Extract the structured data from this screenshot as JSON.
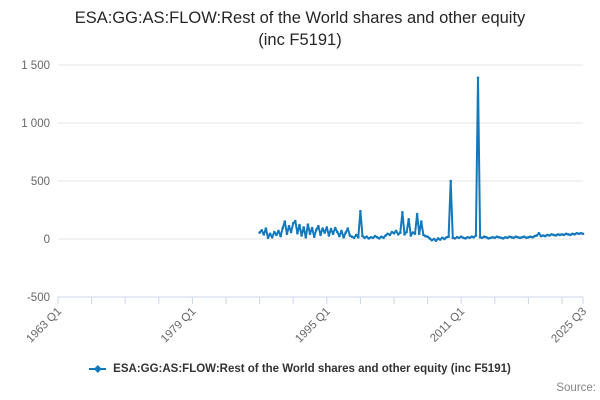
{
  "colors": {
    "series_blue": "#1379bd",
    "gridline": "#e6e6e6",
    "axis_line": "#ccd6eb",
    "tick_text": "#666666",
    "title_text": "#262626",
    "legend_text": "#333333",
    "source_text": "#858585",
    "background": "#ffffff"
  },
  "footer": {
    "source_label": "Source:"
  },
  "chart_data": {
    "type": "line",
    "title": "ESA:GG:AS:FLOW:Rest of the World shares and other equity (inc F5191)",
    "title_lines": [
      "ESA:GG:AS:FLOW:Rest of the World shares and other equity",
      "(inc F5191)"
    ],
    "legend_position": "bottom",
    "grid": "horizontal-only",
    "y_axis": {
      "min": -500,
      "max": 1500,
      "ticks": [
        -500,
        0,
        500,
        1000,
        1500
      ],
      "tick_labels": [
        "-500",
        "0",
        "500",
        "1 000",
        "1 500"
      ]
    },
    "x_axis": {
      "start_label": "1963 Q1",
      "end_label": "2025 Q3",
      "total_quarters": 250,
      "minor_tick_every_quarters": 16,
      "labeled_ticks": [
        {
          "quarter_offset": 0,
          "label": "1963 Q1"
        },
        {
          "quarter_offset": 64,
          "label": "1979 Q1"
        },
        {
          "quarter_offset": 128,
          "label": "1995 Q1"
        },
        {
          "quarter_offset": 192,
          "label": "2011 Q1"
        },
        {
          "quarter_offset": 250,
          "label": "2025 Q3"
        }
      ]
    },
    "series": [
      {
        "name": "ESA:GG:AS:FLOW:Rest of the World shares and other equity (inc F5191)",
        "color": "#1379bd",
        "start": "1987 Q1",
        "end": "2025 Q3",
        "frequency": "quarterly",
        "values": [
          55,
          75,
          40,
          90,
          10,
          45,
          15,
          60,
          35,
          70,
          25,
          95,
          150,
          45,
          110,
          60,
          135,
          155,
          50,
          120,
          30,
          100,
          15,
          125,
          45,
          95,
          20,
          80,
          110,
          35,
          90,
          55,
          100,
          30,
          85,
          45,
          95,
          60,
          25,
          70,
          15,
          55,
          90,
          30,
          20,
          10,
          35,
          15,
          240,
          25,
          10,
          20,
          5,
          15,
          10,
          25,
          15,
          5,
          20,
          10,
          30,
          45,
          35,
          60,
          50,
          70,
          40,
          55,
          230,
          40,
          60,
          170,
          30,
          55,
          45,
          215,
          45,
          150,
          35,
          25,
          20,
          5,
          -10,
          0,
          -15,
          5,
          -5,
          10,
          0,
          15,
          20,
          500,
          10,
          5,
          15,
          10,
          20,
          10,
          5,
          15,
          10,
          20,
          15,
          30,
          1390,
          15,
          10,
          20,
          15,
          5,
          10,
          15,
          10,
          20,
          15,
          10,
          5,
          15,
          10,
          20,
          15,
          10,
          20,
          15,
          10,
          15,
          20,
          10,
          15,
          20,
          15,
          25,
          30,
          50,
          25,
          30,
          25,
          35,
          30,
          40,
          35,
          30,
          40,
          35,
          40,
          35,
          45,
          40,
          35,
          45,
          40,
          50,
          45,
          50,
          45
        ]
      }
    ]
  }
}
